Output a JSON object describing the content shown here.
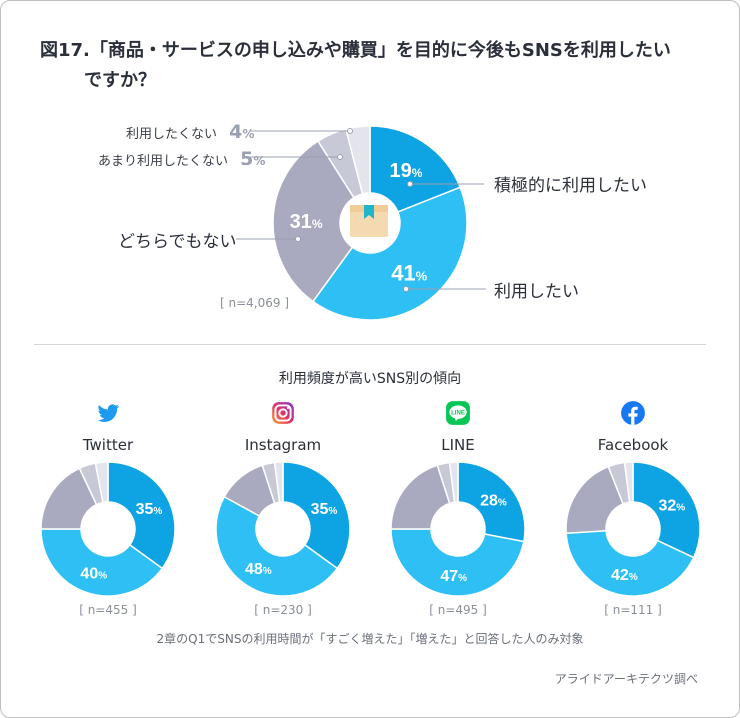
{
  "title_line1": "図17.「商品・サービスの申し込みや購買」を目的に今後もSNSを利用したい",
  "title_line2": "ですか？",
  "colors": {
    "positive": "#0ea3e3",
    "likely": "#2ec0f4",
    "neutral": "#a9aabf",
    "unlikely": "#c8c9d6",
    "negative": "#e4e5ec"
  },
  "main_chart_labels": {
    "positive": "積極的に利用したい",
    "likely": "利用したい",
    "neutral": "どちらでもない",
    "unlikely": "あまり利用したくない",
    "negative": "利用したくない"
  },
  "main_n": "[ n=4,069 ]",
  "subtitle": "利用頻度が高いSNS別の傾向",
  "footnote": "2章のQ1でSNSの利用時間が「すごく増えた」「増えた」と回答した人のみ対象",
  "source": "アライドアーキテクツ調べ",
  "pct_suffix": "%",
  "chart_data": [
    {
      "type": "pie",
      "title": "",
      "categories": [
        "積極的に利用したい",
        "利用したい",
        "どちらでもない",
        "あまり利用したくない",
        "利用したくない"
      ],
      "values": [
        19,
        41,
        31,
        5,
        4
      ],
      "n": "n=4,069"
    },
    {
      "type": "pie",
      "title": "Twitter",
      "values": [
        35,
        40,
        18,
        4,
        3
      ],
      "labeled_values": [
        35,
        40
      ],
      "n": "[ n=455 ]"
    },
    {
      "type": "pie",
      "title": "Instagram",
      "values": [
        35,
        48,
        12,
        3,
        2
      ],
      "labeled_values": [
        35,
        48
      ],
      "n": "[ n=230 ]"
    },
    {
      "type": "pie",
      "title": "LINE",
      "values": [
        28,
        47,
        20,
        3,
        2
      ],
      "labeled_values": [
        28,
        47
      ],
      "n": "[ n=495 ]"
    },
    {
      "type": "pie",
      "title": "Facebook",
      "values": [
        32,
        42,
        20,
        4,
        2
      ],
      "labeled_values": [
        32,
        42
      ],
      "n": "[ n=111 ]"
    }
  ]
}
